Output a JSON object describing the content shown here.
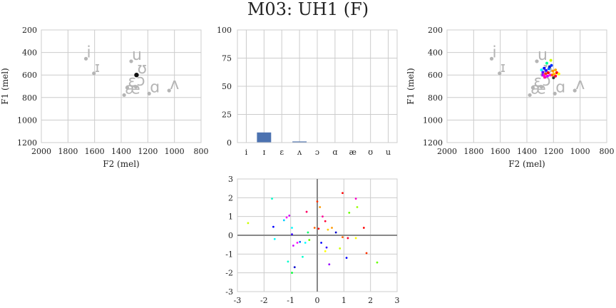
{
  "title": "M03: UH1 (F)",
  "chart_data": [
    {
      "id": "vowel-space-left",
      "type": "scatter",
      "xlabel": "F2 (mel)",
      "ylabel": "F1 (mel)",
      "xlim": [
        2000,
        800
      ],
      "ylim": [
        1200,
        200
      ],
      "xticks": [
        2000,
        1800,
        1600,
        1400,
        1200,
        1000,
        800
      ],
      "yticks": [
        200,
        400,
        600,
        800,
        1000,
        1200
      ],
      "grid": true,
      "vowels": [
        {
          "label": "i",
          "x": 1665,
          "y": 455
        },
        {
          "label": "ɪ",
          "x": 1605,
          "y": 585
        },
        {
          "label": "u",
          "x": 1325,
          "y": 478
        },
        {
          "label": "ʊ",
          "x": 1285,
          "y": 598
        },
        {
          "label": "ɛ",
          "x": 1355,
          "y": 712
        },
        {
          "label": "ɔ",
          "x": 1290,
          "y": 705
        },
        {
          "label": "æ",
          "x": 1378,
          "y": 778
        },
        {
          "label": "ɑ",
          "x": 1190,
          "y": 765
        },
        {
          "label": "ʌ",
          "x": 1040,
          "y": 738
        }
      ],
      "current_point": {
        "x": 1285,
        "y": 600
      }
    },
    {
      "id": "vowel-bar",
      "type": "bar",
      "categories": [
        "i",
        "ɪ",
        "ɛ",
        "ʌ",
        "ɔ",
        "ɑ",
        "æ",
        "ʊ",
        "u"
      ],
      "values": [
        0,
        9,
        0,
        1,
        0,
        0,
        0,
        0,
        0
      ],
      "ylim": [
        0,
        100
      ],
      "yticks": [
        0,
        25,
        50,
        75,
        100
      ],
      "grid": true,
      "color": "#4c72b0"
    },
    {
      "id": "vowel-space-right",
      "type": "scatter",
      "xlabel": "F2 (mel)",
      "ylabel": "F1 (mel)",
      "xlim": [
        2000,
        800
      ],
      "ylim": [
        1200,
        200
      ],
      "xticks": [
        2000,
        1800,
        1600,
        1400,
        1200,
        1000,
        800
      ],
      "yticks": [
        200,
        400,
        600,
        800,
        1000,
        1200
      ],
      "grid": true,
      "vowels": [
        {
          "label": "i",
          "x": 1665,
          "y": 455
        },
        {
          "label": "ɪ",
          "x": 1605,
          "y": 585
        },
        {
          "label": "u",
          "x": 1325,
          "y": 478
        },
        {
          "label": "ʊ",
          "x": 1285,
          "y": 598
        },
        {
          "label": "ɛ",
          "x": 1355,
          "y": 712
        },
        {
          "label": "ɔ",
          "x": 1290,
          "y": 705
        },
        {
          "label": "æ",
          "x": 1378,
          "y": 778
        },
        {
          "label": "ɑ",
          "x": 1190,
          "y": 765
        },
        {
          "label": "ʌ",
          "x": 1040,
          "y": 738
        }
      ],
      "points": [
        {
          "x": 1270,
          "y": 540,
          "color": "#0000ff"
        },
        {
          "x": 1255,
          "y": 560,
          "color": "#3300ff"
        },
        {
          "x": 1240,
          "y": 580,
          "color": "#ff0000"
        },
        {
          "x": 1225,
          "y": 600,
          "color": "#ff00ff"
        },
        {
          "x": 1260,
          "y": 590,
          "color": "#ff3300"
        },
        {
          "x": 1280,
          "y": 575,
          "color": "#6600ff"
        },
        {
          "x": 1230,
          "y": 530,
          "color": "#0000cc"
        },
        {
          "x": 1215,
          "y": 515,
          "color": "#0033ff"
        },
        {
          "x": 1205,
          "y": 565,
          "color": "#ff9900"
        },
        {
          "x": 1195,
          "y": 590,
          "color": "#ffcc00"
        },
        {
          "x": 1185,
          "y": 610,
          "color": "#ff0033"
        },
        {
          "x": 1175,
          "y": 580,
          "color": "#ff0000"
        },
        {
          "x": 1160,
          "y": 590,
          "color": "#ffff00"
        },
        {
          "x": 1245,
          "y": 610,
          "color": "#cc00ff"
        },
        {
          "x": 1265,
          "y": 620,
          "color": "#ff0099"
        },
        {
          "x": 1280,
          "y": 600,
          "color": "#9900ff"
        },
        {
          "x": 1290,
          "y": 555,
          "color": "#00ffff"
        },
        {
          "x": 1250,
          "y": 495,
          "color": "#00ff99"
        },
        {
          "x": 1220,
          "y": 470,
          "color": "#ccff00"
        },
        {
          "x": 1235,
          "y": 545,
          "color": "#0066ff"
        },
        {
          "x": 1210,
          "y": 600,
          "color": "#ff6600"
        },
        {
          "x": 1200,
          "y": 625,
          "color": "#333333"
        },
        {
          "x": 1270,
          "y": 605,
          "color": "#ff00cc"
        },
        {
          "x": 1185,
          "y": 555,
          "color": "#ffaa00"
        }
      ]
    },
    {
      "id": "embedding-scatter",
      "type": "scatter",
      "xlim": [
        -3,
        3
      ],
      "ylim": [
        -3,
        3
      ],
      "xticks": [
        -3,
        -2,
        -1,
        0,
        1,
        2,
        3
      ],
      "yticks": [
        -3,
        -2,
        -1,
        0,
        1,
        2,
        3
      ],
      "grid": true,
      "zero_lines": true,
      "points": [
        {
          "x": -1.7,
          "y": 1.95,
          "color": "#00ffcc"
        },
        {
          "x": -2.6,
          "y": 0.65,
          "color": "#ccff00"
        },
        {
          "x": -1.65,
          "y": 0.45,
          "color": "#0000ff"
        },
        {
          "x": -1.6,
          "y": -0.2,
          "color": "#00ffff"
        },
        {
          "x": -1.25,
          "y": 0.8,
          "color": "#00ccff"
        },
        {
          "x": -1.15,
          "y": 0.95,
          "color": "#ff00ff"
        },
        {
          "x": -1.05,
          "y": 1.05,
          "color": "#cc00ff"
        },
        {
          "x": -0.95,
          "y": 0.4,
          "color": "#00ffff"
        },
        {
          "x": -0.95,
          "y": 0.05,
          "color": "#3300ff"
        },
        {
          "x": -0.9,
          "y": -0.55,
          "color": "#cc00ff"
        },
        {
          "x": -0.75,
          "y": -0.4,
          "color": "#ff00ff"
        },
        {
          "x": -0.65,
          "y": -0.35,
          "color": "#0066ff"
        },
        {
          "x": -0.55,
          "y": -1.15,
          "color": "#00ffcc"
        },
        {
          "x": -0.45,
          "y": -0.4,
          "color": "#00ffff"
        },
        {
          "x": -0.4,
          "y": 1.25,
          "color": "#ff0066"
        },
        {
          "x": -0.35,
          "y": 0.15,
          "color": "#00ff66"
        },
        {
          "x": -0.3,
          "y": -0.25,
          "color": "#66ff00"
        },
        {
          "x": -0.85,
          "y": -1.7,
          "color": "#0000cc"
        },
        {
          "x": -1.1,
          "y": -1.4,
          "color": "#00ffcc"
        },
        {
          "x": -0.95,
          "y": -2.0,
          "color": "#00ff33"
        },
        {
          "x": -0.1,
          "y": 0.4,
          "color": "#ff6600"
        },
        {
          "x": 0.0,
          "y": 1.8,
          "color": "#ff3300"
        },
        {
          "x": 0.05,
          "y": 0.35,
          "color": "#ff0000"
        },
        {
          "x": 0.1,
          "y": 1.5,
          "color": "#ff9900"
        },
        {
          "x": 0.15,
          "y": -0.4,
          "color": "#0000ff"
        },
        {
          "x": 0.2,
          "y": 1.0,
          "color": "#ff0099"
        },
        {
          "x": 0.3,
          "y": 0.75,
          "color": "#ff0033"
        },
        {
          "x": 0.35,
          "y": -0.65,
          "color": "#3300ff"
        },
        {
          "x": 0.4,
          "y": 0.3,
          "color": "#ffcc00"
        },
        {
          "x": 0.45,
          "y": -1.55,
          "color": "#9900ff"
        },
        {
          "x": 0.3,
          "y": -0.85,
          "color": "#ffff00"
        },
        {
          "x": 0.55,
          "y": 0.4,
          "color": "#ff9900"
        },
        {
          "x": 0.7,
          "y": 0.15,
          "color": "#0000cc"
        },
        {
          "x": 0.95,
          "y": 2.25,
          "color": "#ff0000"
        },
        {
          "x": 0.95,
          "y": -0.1,
          "color": "#ff6600"
        },
        {
          "x": 0.85,
          "y": -0.7,
          "color": "#ccff00"
        },
        {
          "x": 1.15,
          "y": -0.15,
          "color": "#ff0033"
        },
        {
          "x": 1.2,
          "y": 1.2,
          "color": "#66ff00"
        },
        {
          "x": 1.1,
          "y": -1.2,
          "color": "#0000ff"
        },
        {
          "x": 1.45,
          "y": 1.95,
          "color": "#ff00cc"
        },
        {
          "x": 1.5,
          "y": 1.5,
          "color": "#99ff00"
        },
        {
          "x": 1.45,
          "y": -0.15,
          "color": "#ffff00"
        },
        {
          "x": 1.75,
          "y": 0.4,
          "color": "#ff0000"
        },
        {
          "x": 1.85,
          "y": -0.95,
          "color": "#ff3300"
        },
        {
          "x": 2.25,
          "y": -1.45,
          "color": "#66ff00"
        }
      ]
    }
  ]
}
